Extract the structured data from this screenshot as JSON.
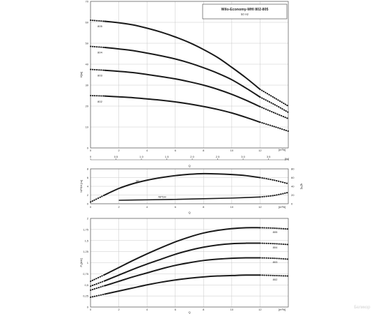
{
  "header": {
    "title": "Wilo-Economy-MHI 802-805",
    "subtitle": "50 Hz"
  },
  "watermark": "Беликор",
  "chart_data": [
    {
      "type": "line",
      "ylabel": "H[m]",
      "xlabel": "Q",
      "x_unit": "[m³/h]",
      "x2_unit": "[l/s]",
      "xlim": [
        0,
        14
      ],
      "ylim": [
        0,
        70
      ],
      "xticks": [
        0,
        2,
        4,
        6,
        8,
        10,
        12
      ],
      "yticks": [
        0,
        10,
        20,
        30,
        40,
        50,
        60,
        70
      ],
      "x2ticks": [
        "0",
        "0.5",
        "1.0",
        "1.5",
        "2.0",
        "2.5",
        "3.0",
        "3.5"
      ],
      "x2values": [
        0,
        0.5,
        1.0,
        1.5,
        2.0,
        2.5,
        3.0,
        3.5
      ],
      "series": [
        {
          "name": "805",
          "x": [
            0,
            1,
            2,
            3,
            4,
            5,
            6,
            7,
            8,
            9,
            10,
            11,
            12,
            13,
            14
          ],
          "y": [
            61,
            60.5,
            59.8,
            58.8,
            57.2,
            55.3,
            53,
            50.3,
            47,
            43.2,
            38.5,
            33.5,
            28,
            24,
            20
          ]
        },
        {
          "name": "804",
          "x": [
            0,
            1,
            2,
            3,
            4,
            5,
            6,
            7,
            8,
            9,
            10,
            11,
            12,
            13,
            14
          ],
          "y": [
            48.5,
            48,
            47.3,
            46.5,
            45.3,
            44,
            42.5,
            40.6,
            38.3,
            35.7,
            32.6,
            28.6,
            24.3,
            20.8,
            17
          ]
        },
        {
          "name": "803",
          "x": [
            0,
            1,
            2,
            3,
            4,
            5,
            6,
            7,
            8,
            9,
            10,
            11,
            12,
            13,
            14
          ],
          "y": [
            37.5,
            37.1,
            36.6,
            36,
            35.1,
            34.1,
            33,
            31.6,
            30,
            28,
            25.6,
            22.8,
            19.7,
            16.8,
            14
          ]
        },
        {
          "name": "802",
          "x": [
            0,
            1,
            2,
            3,
            4,
            5,
            6,
            7,
            8,
            9,
            10,
            11,
            12,
            13,
            14
          ],
          "y": [
            25,
            24.8,
            24.4,
            24,
            23.4,
            22.8,
            22,
            21,
            19.8,
            18.4,
            16.7,
            14.6,
            12.3,
            10.2,
            8
          ]
        }
      ],
      "grid": true
    },
    {
      "type": "line",
      "ylabel": "NPSH [m]",
      "y2label": "η[%]",
      "xlabel": "Q",
      "x_unit": "[m³/h]",
      "xlim": [
        0,
        14
      ],
      "ylim": [
        0,
        8
      ],
      "y2lim": [
        0,
        80
      ],
      "xticks": [
        0,
        2,
        4,
        6,
        8,
        10,
        12
      ],
      "yticks": [
        0,
        2,
        4,
        6,
        8
      ],
      "y2ticks": [
        0,
        20,
        40,
        60,
        80
      ],
      "series": [
        {
          "name": "ηP",
          "axis": "y2",
          "x": [
            0,
            1,
            2,
            3,
            4,
            5,
            6,
            7,
            8,
            9,
            10,
            11,
            12,
            13,
            14
          ],
          "y": [
            4,
            20,
            35,
            46,
            54,
            60,
            64.5,
            67.5,
            69,
            68.5,
            67,
            64.5,
            60,
            54,
            46
          ]
        },
        {
          "name": "NPSH",
          "axis": "y",
          "x": [
            2,
            4,
            6,
            8,
            10,
            12,
            13,
            14
          ],
          "y": [
            0.8,
            0.9,
            1.0,
            1.15,
            1.3,
            1.55,
            1.9,
            2.6
          ]
        }
      ],
      "grid": true
    },
    {
      "type": "line",
      "ylabel": "P₂[kW]",
      "xlabel": "Q",
      "x_unit": "[m³/h]",
      "xlim": [
        0,
        14
      ],
      "ylim": [
        0,
        2
      ],
      "xticks": [
        0,
        2,
        4,
        6,
        8,
        10,
        12
      ],
      "yticks": [
        "0",
        "0,25",
        "0,5",
        "0,75",
        "1",
        "1,25",
        "1,5",
        "1,75",
        "2"
      ],
      "yvalues": [
        0,
        0.25,
        0.5,
        0.75,
        1,
        1.25,
        1.5,
        1.75,
        2
      ],
      "series": [
        {
          "name": "805",
          "x": [
            0,
            1,
            2,
            3,
            4,
            5,
            6,
            7,
            8,
            9,
            10,
            11,
            12,
            13,
            14
          ],
          "y": [
            0.58,
            0.73,
            0.89,
            1.05,
            1.2,
            1.34,
            1.47,
            1.58,
            1.67,
            1.73,
            1.77,
            1.79,
            1.79,
            1.78,
            1.76
          ]
        },
        {
          "name": "804",
          "x": [
            0,
            1,
            2,
            3,
            4,
            5,
            6,
            7,
            8,
            9,
            10,
            11,
            12,
            13,
            14
          ],
          "y": [
            0.47,
            0.59,
            0.72,
            0.85,
            0.97,
            1.08,
            1.19,
            1.28,
            1.35,
            1.4,
            1.43,
            1.44,
            1.44,
            1.43,
            1.41
          ]
        },
        {
          "name": "803",
          "x": [
            0,
            1,
            2,
            3,
            4,
            5,
            6,
            7,
            8,
            9,
            10,
            11,
            12,
            13,
            14
          ],
          "y": [
            0.38,
            0.48,
            0.58,
            0.68,
            0.77,
            0.86,
            0.94,
            1.0,
            1.05,
            1.08,
            1.1,
            1.11,
            1.11,
            1.1,
            1.08
          ]
        },
        {
          "name": "802",
          "x": [
            0,
            1,
            2,
            3,
            4,
            5,
            6,
            7,
            8,
            9,
            10,
            11,
            12,
            13,
            14
          ],
          "y": [
            0.22,
            0.29,
            0.36,
            0.43,
            0.5,
            0.56,
            0.61,
            0.65,
            0.68,
            0.7,
            0.71,
            0.72,
            0.72,
            0.71,
            0.7
          ]
        }
      ],
      "grid": true
    }
  ]
}
